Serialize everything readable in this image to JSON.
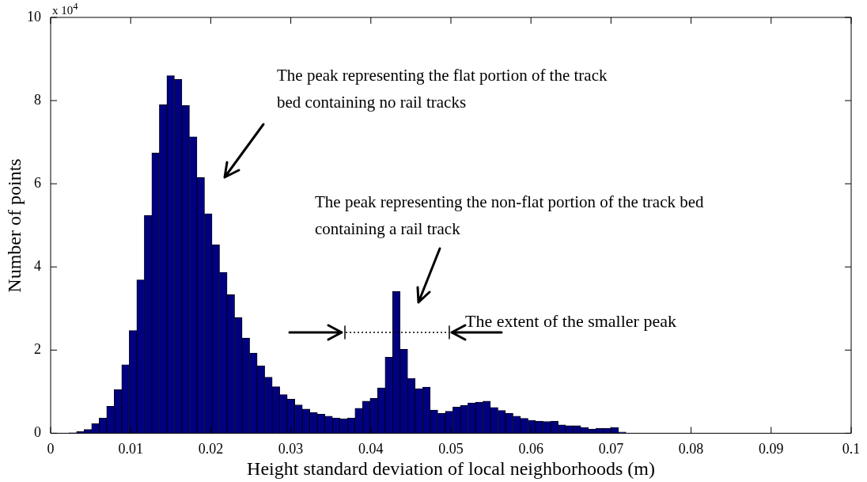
{
  "chart_data": {
    "type": "histogram",
    "xlabel": "Height standard deviation of local neighborhoods (m)",
    "ylabel": "Number of points",
    "color": "#000080",
    "bins": [
      0.0023,
      0.00324,
      0.00418,
      0.00512,
      0.00606,
      0.007,
      0.00794,
      0.00888,
      0.00982,
      0.01076,
      0.0117,
      0.01264,
      0.01358,
      0.01452,
      0.01546,
      0.0164,
      0.01734,
      0.01828,
      0.01922,
      0.02016,
      0.0211,
      0.02204,
      0.02298,
      0.02392,
      0.02486,
      0.0258,
      0.02674,
      0.02768,
      0.02862,
      0.02956,
      0.0305,
      0.03144,
      0.03238,
      0.03332,
      0.03426,
      0.0352,
      0.03614,
      0.03708,
      0.03802,
      0.03896,
      0.0399,
      0.04084,
      0.04178,
      0.04272,
      0.04366,
      0.0446,
      0.04554,
      0.04648,
      0.04742,
      0.04836,
      0.0493,
      0.05024,
      0.05118,
      0.05212,
      0.05306,
      0.054,
      0.05494,
      0.05588,
      0.05682,
      0.05776,
      0.0587,
      0.05964,
      0.06058,
      0.06152,
      0.06246,
      0.0634,
      0.06434,
      0.06528,
      0.06622,
      0.06716,
      0.0681,
      0.06904,
      0.06998,
      0.07092,
      0.07186,
      0.0728,
      0.07374,
      0.07468,
      0.07562,
      0.07656,
      0.0775,
      0.07844,
      0.07938,
      0.08032,
      0.08126,
      0.0822,
      0.08314,
      0.08408,
      0.08502,
      0.08596,
      0.0869,
      0.08784,
      0.08878,
      0.08972,
      0.09066,
      0.0916,
      0.09254,
      0.09348,
      0.09442,
      0.09536,
      0.0963
    ],
    "values": [
      0.01,
      0.04,
      0.09,
      0.23,
      0.37,
      0.65,
      1.05,
      1.65,
      2.47,
      3.69,
      5.24,
      6.74,
      7.9,
      8.6,
      8.51,
      7.88,
      7.13,
      6.15,
      5.28,
      4.53,
      3.87,
      3.33,
      2.78,
      2.29,
      1.93,
      1.62,
      1.35,
      1.12,
      0.93,
      0.82,
      0.68,
      0.58,
      0.5,
      0.46,
      0.41,
      0.37,
      0.35,
      0.37,
      0.6,
      0.77,
      0.84,
      1.09,
      1.83,
      3.41,
      2.02,
      1.32,
      1.07,
      1.11,
      0.56,
      0.48,
      0.53,
      0.63,
      0.67,
      0.73,
      0.75,
      0.77,
      0.62,
      0.55,
      0.48,
      0.41,
      0.36,
      0.31,
      0.29,
      0.28,
      0.29,
      0.2,
      0.18,
      0.18,
      0.14,
      0.1,
      0.12,
      0.12,
      0.14,
      0.03,
      0,
      0,
      0,
      0,
      0,
      0,
      0,
      0,
      0,
      0,
      0,
      0,
      0,
      0,
      0,
      0,
      0,
      0,
      0,
      0,
      0,
      0,
      0,
      0,
      0,
      0
    ],
    "xlim": [
      0,
      0.1
    ],
    "xticks": [
      0,
      0.01,
      0.02,
      0.03,
      0.04,
      0.05,
      0.06,
      0.07,
      0.08,
      0.09,
      0.1
    ],
    "ylim": [
      0,
      10
    ],
    "yticks": [
      0,
      2,
      4,
      6,
      8,
      10
    ],
    "annotations": [
      "x 10$^{4}$",
      "The peak representing the flat portion of the track bed containing no rail tracks",
      "The peak representing the non-flat portion of the track bed containing a rail track",
      "The extent of the smaller peak"
    ]
  }
}
